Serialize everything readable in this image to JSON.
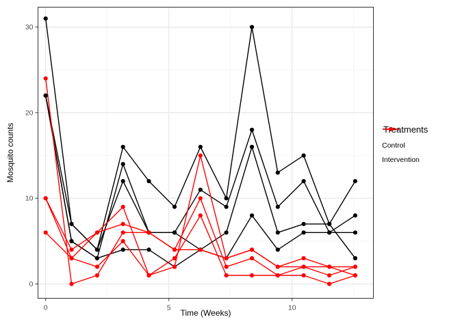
{
  "legend": {
    "title": "Treatments",
    "items": [
      {
        "label": "Control",
        "color": "#000000"
      },
      {
        "label": "Intervention",
        "color": "#ff0000"
      }
    ]
  },
  "chart_data": {
    "type": "line",
    "title": "",
    "xlabel": "Time (Weeks)",
    "ylabel": "Mosquito counts",
    "legend_position": "right",
    "grid": true,
    "xlim": [
      -0.32,
      13.3
    ],
    "ylim": [
      -1.7,
      32.4
    ],
    "xticks": {
      "values": [
        0,
        5,
        10
      ],
      "labels": [
        "0",
        "5",
        "10"
      ]
    },
    "yticks": {
      "values": [
        0,
        10,
        20,
        30
      ],
      "labels": [
        "0",
        "10",
        "20",
        "30"
      ]
    },
    "x": [
      0,
      1.05,
      2.09,
      3.14,
      4.19,
      5.23,
      6.28,
      7.33,
      8.37,
      9.42,
      10.47,
      11.51,
      12.56
    ],
    "series": [
      {
        "name": "control-1",
        "group": "Control",
        "color": "#000000",
        "values": [
          31,
          7,
          4,
          16,
          12,
          9,
          16,
          10,
          30,
          13,
          15,
          7,
          12
        ]
      },
      {
        "name": "control-2",
        "group": "Control",
        "color": "#000000",
        "values": [
          22,
          5,
          3,
          14,
          6,
          6,
          11,
          9,
          18,
          9,
          12,
          6,
          8
        ]
      },
      {
        "name": "control-3",
        "group": "Control",
        "color": "#000000",
        "values": [
          22,
          7,
          4,
          12,
          6,
          6,
          4,
          6,
          16,
          6,
          7,
          7,
          3
        ]
      },
      {
        "name": "control-4",
        "group": "Control",
        "color": "#000000",
        "values": [
          22,
          5,
          3,
          4,
          4,
          2,
          4,
          3,
          8,
          4,
          6,
          6,
          6
        ]
      },
      {
        "name": "intervention-1",
        "group": "Intervention",
        "color": "#ff0000",
        "values": [
          10,
          4,
          6,
          9,
          1,
          2,
          15,
          3,
          4,
          2,
          3,
          2,
          2
        ]
      },
      {
        "name": "intervention-2",
        "group": "Intervention",
        "color": "#ff0000",
        "values": [
          6,
          3,
          6,
          7,
          6,
          4,
          10,
          2,
          3,
          1,
          2,
          1,
          2
        ]
      },
      {
        "name": "intervention-3",
        "group": "Intervention",
        "color": "#ff0000",
        "values": [
          10,
          3,
          2,
          5,
          1,
          3,
          8,
          1,
          1,
          1,
          1,
          0,
          1
        ]
      },
      {
        "name": "intervention-4",
        "group": "Intervention",
        "color": "#ff0000",
        "values": [
          24,
          0,
          1,
          6,
          6,
          4,
          4,
          3,
          4,
          2,
          2,
          2,
          1
        ]
      }
    ]
  },
  "style": {
    "panel_border_color": "#333333",
    "grid_major_color": "#e6e6e6",
    "grid_minor_color": "#f2f2f2",
    "tick_color": "#333333",
    "tick_label_color": "#4d4d4d"
  }
}
